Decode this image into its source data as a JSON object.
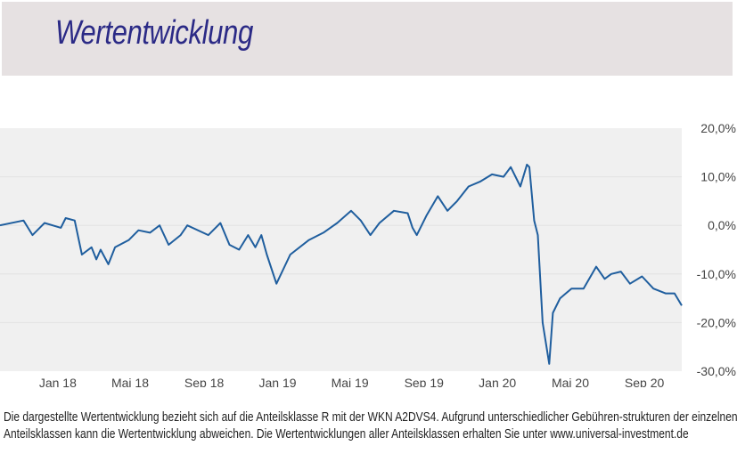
{
  "header": {
    "title": "Wertentwicklung"
  },
  "footnote": "Die dargestellte Wertentwicklung bezieht sich auf die Anteilsklasse R mit der WKN A2DVS4. Aufgrund unterschiedlicher Gebühren-strukturen der einzelnen Anteilsklassen kann die Wertentwicklung abweichen. Die Wertentwicklungen aller Anteilsklassen erhalten Sie unter www.universal-investment.de",
  "chart_data": {
    "type": "line",
    "title": "",
    "xlabel": "",
    "ylabel": "",
    "ylim": [
      -30,
      20
    ],
    "xlim": [
      "2017-09-27",
      "2020-11-02"
    ],
    "grid": "horizontal",
    "line_color": "#1f5e9e",
    "background_color": "#f0f0f0",
    "y_ticks": [
      20,
      10,
      0,
      -10,
      -20,
      -30
    ],
    "y_tick_labels": [
      "20,0%",
      "10,0%",
      "0,0%",
      "-10,0%",
      "-20,0%",
      "-30,0%"
    ],
    "x_ticks": [
      "2018-01-01",
      "2018-05-01",
      "2018-09-01",
      "2019-01-01",
      "2019-05-01",
      "2019-09-01",
      "2020-01-01",
      "2020-05-01",
      "2020-09-01"
    ],
    "x_tick_labels": [
      "Jan 18",
      "Mai 18",
      "Sep 18",
      "Jan 19",
      "Mai 19",
      "Sep 19",
      "Jan 20",
      "Mai 20",
      "Sep 20"
    ],
    "series": [
      {
        "x": [
          "2017-09-27",
          "2017-11-05",
          "2017-11-20",
          "2017-12-10",
          "2018-01-06",
          "2018-01-14",
          "2018-01-29",
          "2018-02-10",
          "2018-02-26",
          "2018-03-06",
          "2018-03-13",
          "2018-03-26",
          "2018-04-06",
          "2018-04-29",
          "2018-05-15",
          "2018-06-03",
          "2018-06-19",
          "2018-07-04",
          "2018-07-24",
          "2018-08-04",
          "2018-09-08",
          "2018-09-28",
          "2018-10-13",
          "2018-10-29",
          "2018-11-13",
          "2018-11-25",
          "2018-12-05",
          "2018-12-14",
          "2018-12-30",
          "2019-01-22",
          "2019-02-22",
          "2019-03-18",
          "2019-04-10",
          "2019-05-03",
          "2019-05-19",
          "2019-06-04",
          "2019-06-19",
          "2019-07-13",
          "2019-08-05",
          "2019-08-13",
          "2019-08-20",
          "2019-09-05",
          "2019-09-24",
          "2019-10-10",
          "2019-10-26",
          "2019-11-14",
          "2019-12-03",
          "2019-12-23",
          "2020-01-11",
          "2020-01-23",
          "2020-02-08",
          "2020-02-19",
          "2020-02-23",
          "2020-03-02",
          "2020-03-08",
          "2020-03-16",
          "2020-03-27",
          "2020-04-02",
          "2020-04-14",
          "2020-05-03",
          "2020-05-23",
          "2020-06-13",
          "2020-06-27",
          "2020-07-08",
          "2020-07-24",
          "2020-08-08",
          "2020-08-28",
          "2020-09-16",
          "2020-10-06",
          "2020-10-21",
          "2020-11-02"
        ],
        "y": [
          0,
          1,
          -2,
          0.5,
          -0.5,
          1.5,
          1,
          -6,
          -4.5,
          -7,
          -5,
          -8,
          -4.5,
          -3,
          -1,
          -1.5,
          0,
          -4,
          -2,
          0,
          -2,
          0.5,
          -4,
          -5,
          -2,
          -4.5,
          -2,
          -6,
          -12,
          -6,
          -3,
          -1.5,
          0.5,
          3,
          1,
          -2,
          0.5,
          3,
          2.5,
          -0.5,
          -2,
          2,
          6,
          3,
          5,
          8,
          9,
          10.5,
          10,
          12,
          8,
          12.5,
          12,
          1,
          -2,
          -20,
          -28.5,
          -18,
          -15,
          -13,
          -13,
          -8.5,
          -11,
          -10,
          -9.5,
          -12,
          -10.5,
          -13,
          -14,
          -14,
          -16.5
        ]
      }
    ]
  }
}
